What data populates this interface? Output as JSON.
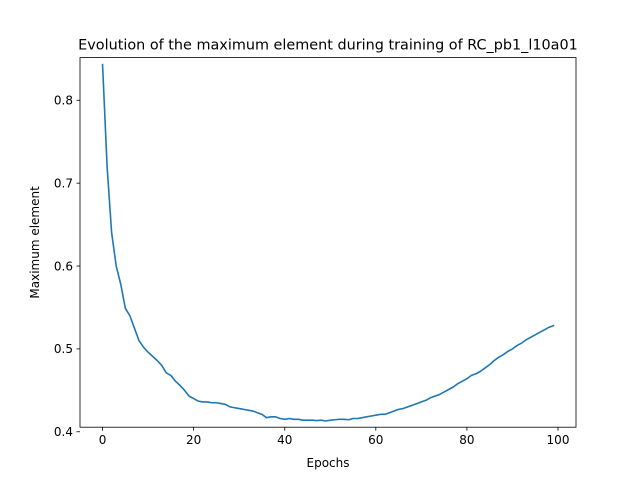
{
  "chart_data": {
    "type": "line",
    "title": "Evolution of the maximum element during training of RC_pb1_l10a01",
    "xlabel": "Epochs",
    "ylabel": "Maximum element",
    "xlim": [
      -4.95,
      103.95
    ],
    "ylim": [
      0.4055,
      0.8515
    ],
    "xticks": [
      0,
      20,
      40,
      60,
      80,
      100
    ],
    "yticks": [
      0.4,
      0.5,
      0.6,
      0.7,
      0.8
    ],
    "grid": false,
    "legend": "none",
    "series": [
      {
        "color": "#1f77b4",
        "x": [
          0,
          1,
          2,
          3,
          4,
          5,
          6,
          7,
          8,
          9,
          10,
          11,
          12,
          13,
          14,
          15,
          16,
          17,
          18,
          19,
          20,
          21,
          22,
          23,
          24,
          25,
          26,
          27,
          28,
          29,
          30,
          31,
          32,
          33,
          34,
          35,
          36,
          37,
          38,
          39,
          40,
          41,
          42,
          43,
          44,
          45,
          46,
          47,
          48,
          49,
          50,
          51,
          52,
          53,
          54,
          55,
          56,
          57,
          58,
          59,
          60,
          61,
          62,
          63,
          64,
          65,
          66,
          67,
          68,
          69,
          70,
          71,
          72,
          73,
          74,
          75,
          76,
          77,
          78,
          79,
          80,
          81,
          82,
          83,
          84,
          85,
          86,
          87,
          88,
          89,
          90,
          91,
          92,
          93,
          94,
          95,
          96,
          97,
          98,
          99
        ],
        "y": [
          0.843,
          0.72,
          0.64,
          0.6,
          0.578,
          0.549,
          0.54,
          0.525,
          0.51,
          0.502,
          0.496,
          0.491,
          0.486,
          0.48,
          0.471,
          0.468,
          0.461,
          0.456,
          0.45,
          0.443,
          0.44,
          0.437,
          0.436,
          0.436,
          0.435,
          0.435,
          0.434,
          0.433,
          0.43,
          0.429,
          0.428,
          0.427,
          0.426,
          0.425,
          0.423,
          0.421,
          0.417,
          0.418,
          0.418,
          0.416,
          0.415,
          0.416,
          0.415,
          0.415,
          0.414,
          0.414,
          0.414,
          0.4135,
          0.414,
          0.413,
          0.414,
          0.4145,
          0.415,
          0.415,
          0.4145,
          0.416,
          0.416,
          0.417,
          0.418,
          0.419,
          0.42,
          0.421,
          0.421,
          0.423,
          0.425,
          0.427,
          0.428,
          0.43,
          0.432,
          0.434,
          0.436,
          0.438,
          0.441,
          0.443,
          0.445,
          0.448,
          0.451,
          0.454,
          0.458,
          0.461,
          0.464,
          0.468,
          0.47,
          0.473,
          0.477,
          0.481,
          0.486,
          0.49,
          0.493,
          0.497,
          0.5,
          0.504,
          0.507,
          0.511,
          0.514,
          0.517,
          0.52,
          0.523,
          0.526,
          0.528
        ]
      }
    ]
  }
}
